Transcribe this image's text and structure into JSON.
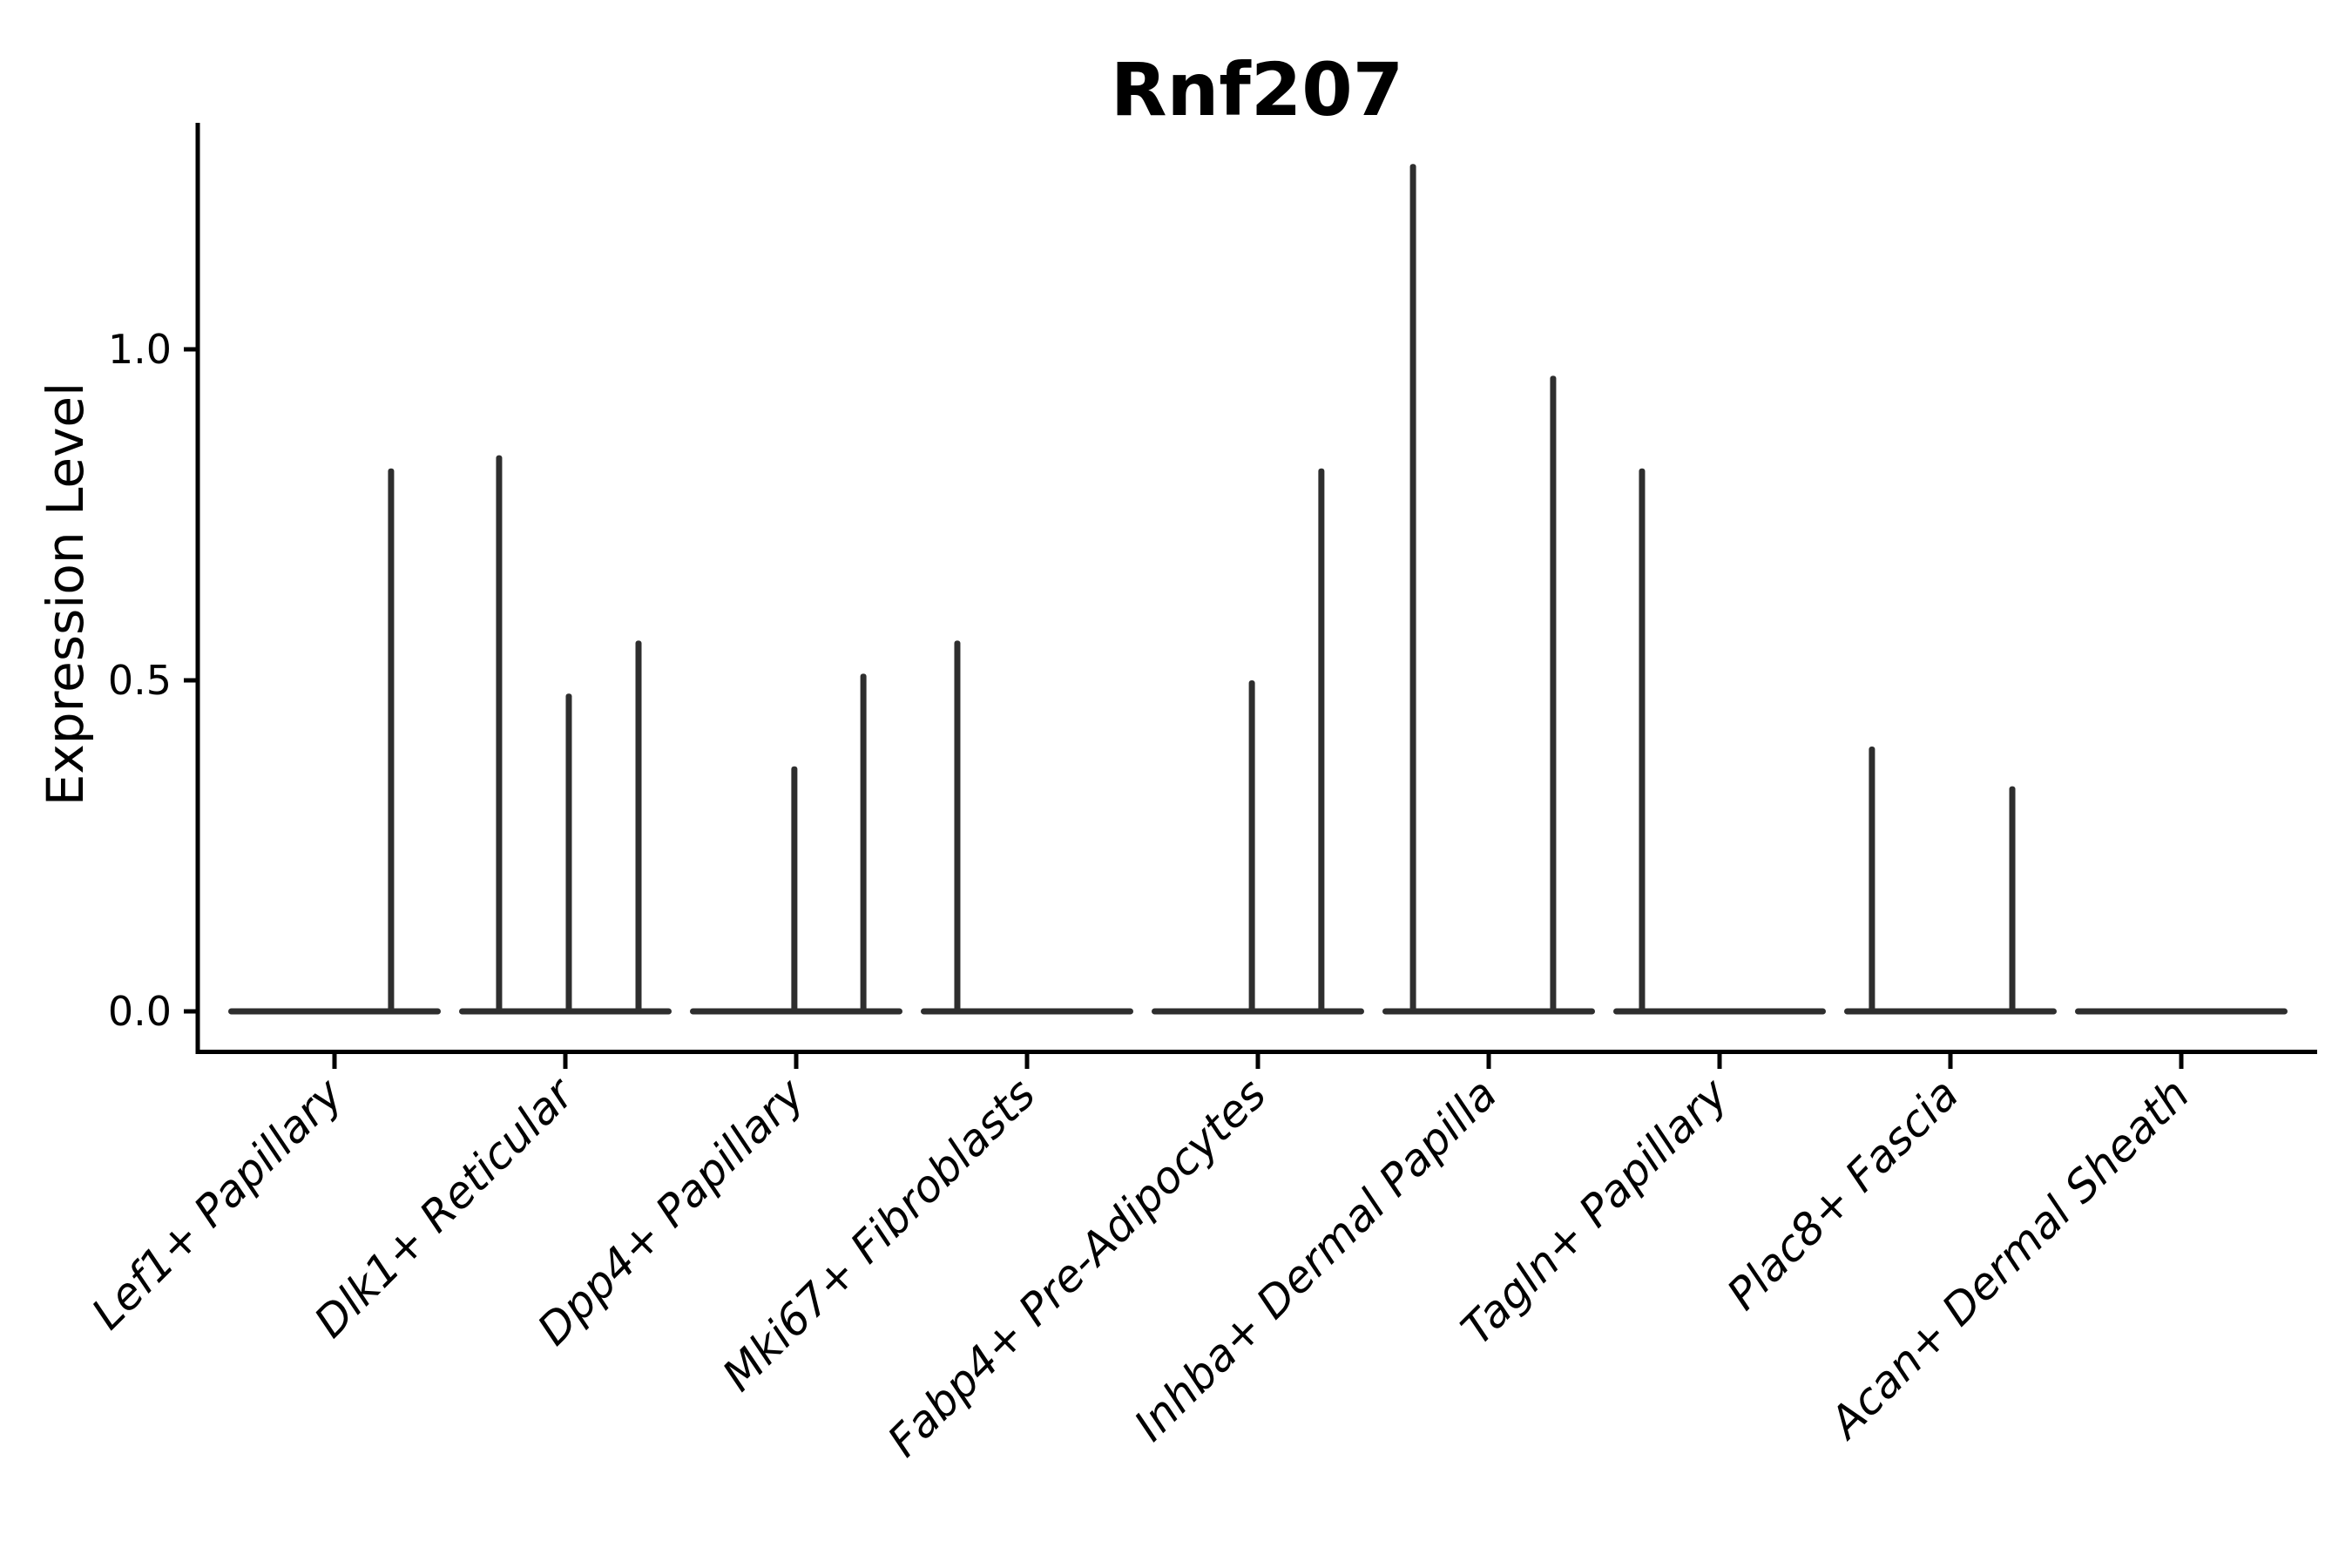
{
  "chart_data": {
    "type": "violin",
    "title": "Rnf207",
    "xlabel": "",
    "ylabel": "Expression Level",
    "grid": false,
    "legend": "none",
    "background_color": "#ffffff",
    "axis_color": "#000000",
    "violin_color": "#2e2e2e",
    "ylim": [
      -0.06,
      1.34
    ],
    "ytick_values": [
      0.0,
      0.5,
      1.0
    ],
    "ytick_labels": [
      "0.0",
      "0.5",
      "1.0"
    ],
    "categories": [
      "Lef1+ Papillary",
      "Dlk1+ Reticular",
      "Dpp4+ Papillary",
      "Mki67+ Fibroblasts",
      "Fabp4+ Pre-Adipocytes",
      "Inhba+ Dermal Papilla",
      "Tagln+ Papillary",
      "Plac8+ Fascia",
      "Acan+ Dermal Sheath"
    ],
    "violins": [
      {
        "category": "Lef1+ Papillary",
        "baseline_value": 0.0,
        "spikes": [
          {
            "pos": 0.245,
            "max": 0.82
          }
        ]
      },
      {
        "category": "Dlk1+ Reticular",
        "baseline_value": 0.0,
        "spikes": [
          {
            "pos": -0.287,
            "max": 0.84
          },
          {
            "pos": 0.015,
            "max": 0.48
          },
          {
            "pos": 0.317,
            "max": 0.56
          }
        ]
      },
      {
        "category": "Dpp4+ Papillary",
        "baseline_value": 0.0,
        "spikes": [
          {
            "pos": -0.008,
            "max": 0.37
          },
          {
            "pos": 0.291,
            "max": 0.51
          }
        ]
      },
      {
        "category": "Mki67+ Fibroblasts",
        "baseline_value": 0.0,
        "spikes": [
          {
            "pos": -0.302,
            "max": 0.56
          }
        ]
      },
      {
        "category": "Fabp4+ Pre-Adipocytes",
        "baseline_value": 0.0,
        "spikes": [
          {
            "pos": -0.026,
            "max": 0.5
          },
          {
            "pos": 0.275,
            "max": 0.82
          }
        ]
      },
      {
        "category": "Inhba+ Dermal Papilla",
        "baseline_value": 0.0,
        "spikes": [
          {
            "pos": -0.328,
            "max": 1.28
          },
          {
            "pos": 0.279,
            "max": 0.96
          }
        ]
      },
      {
        "category": "Tagln+ Papillary",
        "baseline_value": 0.0,
        "spikes": [
          {
            "pos": -0.336,
            "max": 0.82
          }
        ]
      },
      {
        "category": "Plac8+ Fascia",
        "baseline_value": 0.0,
        "spikes": [
          {
            "pos": -0.34,
            "max": 0.4
          },
          {
            "pos": 0.268,
            "max": 0.34
          }
        ]
      },
      {
        "category": "Acan+ Dermal Sheath",
        "baseline_value": 0.0,
        "spikes": []
      }
    ]
  }
}
